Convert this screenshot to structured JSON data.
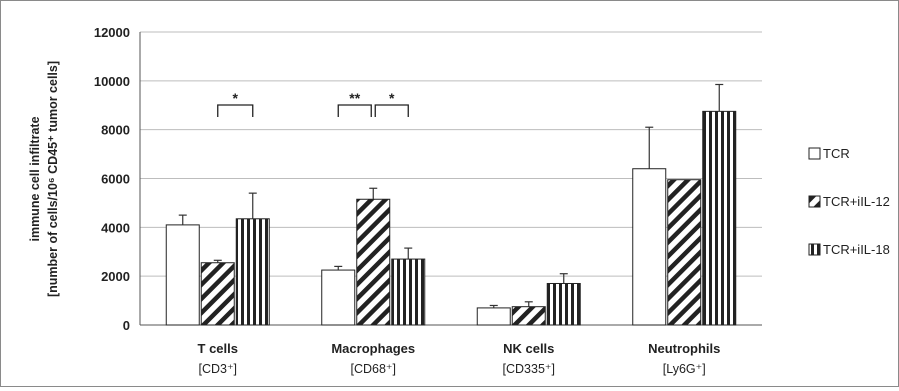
{
  "chart_data": {
    "type": "bar",
    "ylabel_line1": "immune cell infiltrate",
    "ylabel_line2": "[number of cells/10⁶ CD45⁺ tumor cells]",
    "ylim": [
      0,
      12000
    ],
    "yticks": [
      "0",
      "2000",
      "4000",
      "6000",
      "8000",
      "10000",
      "12000"
    ],
    "categories": [
      {
        "name": "T cells",
        "marker": "[CD3⁺]"
      },
      {
        "name": "Macrophages",
        "marker": "[CD68⁺]"
      },
      {
        "name": "NK cells",
        "marker": "[CD335⁺]"
      },
      {
        "name": "Neutrophils",
        "marker": "[Ly6G⁺]"
      }
    ],
    "series": [
      {
        "name": "TCR",
        "pattern": "open",
        "values": [
          4100,
          2250,
          700,
          6400
        ],
        "errors": [
          400,
          150,
          100,
          1700
        ]
      },
      {
        "name": "TCR+iIL-12",
        "pattern": "diagonal",
        "values": [
          2550,
          5150,
          750,
          5950
        ],
        "errors": [
          100,
          450,
          200,
          0
        ]
      },
      {
        "name": "TCR+iIL-18",
        "pattern": "vertical",
        "values": [
          4350,
          2700,
          1700,
          8750
        ],
        "errors": [
          1050,
          450,
          400,
          1100
        ]
      }
    ],
    "significance": [
      {
        "category": 0,
        "from_series": 1,
        "to_series": 2,
        "label": "*"
      },
      {
        "category": 1,
        "from_series": 0,
        "to_series": 1,
        "label": "**"
      },
      {
        "category": 1,
        "from_series": 1,
        "to_series": 2,
        "label": "*"
      }
    ],
    "legend_position": "right",
    "colors": {
      "bar_fill": "#ffffff",
      "bar_stroke": "#222222",
      "hatch": "#222222",
      "gridline": "#bdbdbd"
    }
  }
}
